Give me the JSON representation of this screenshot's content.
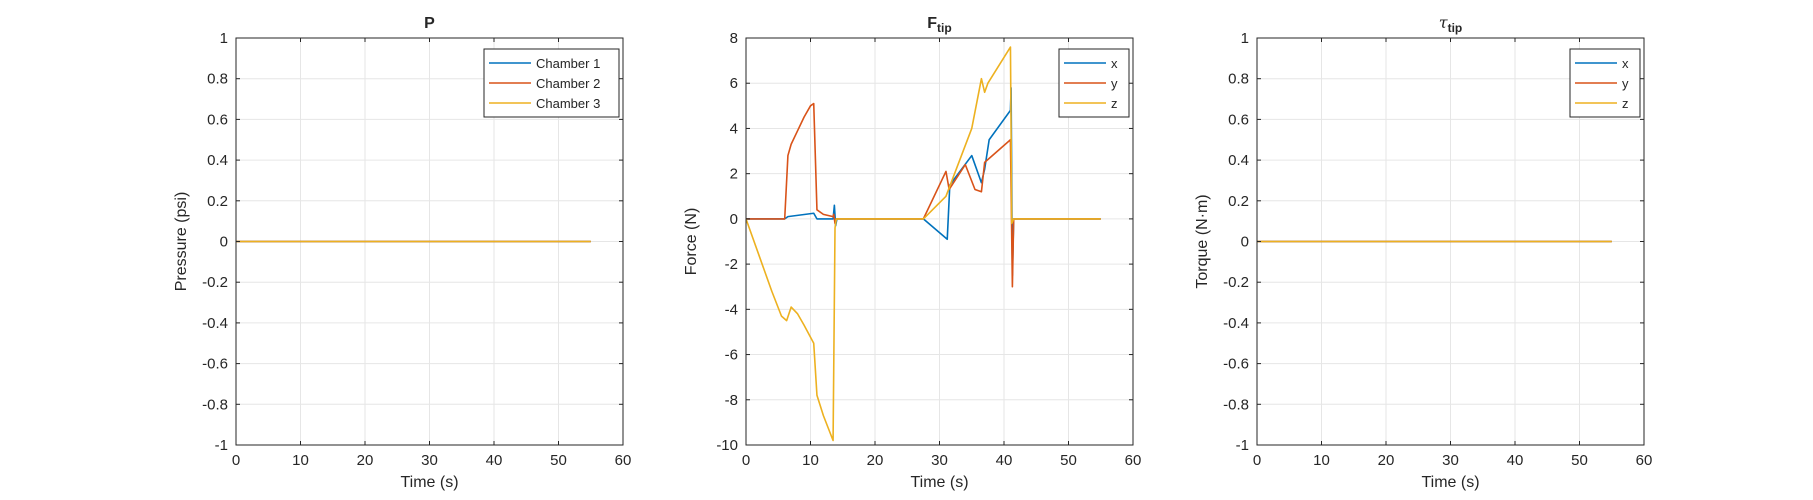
{
  "chart_data": [
    {
      "type": "line",
      "title": "P",
      "title_sub": "",
      "title_symbol": "",
      "xlabel": "Time (s)",
      "ylabel": "Pressure (psi)",
      "xlim": [
        0,
        60
      ],
      "ylim": [
        -1,
        1
      ],
      "xticks": [
        0,
        10,
        20,
        30,
        40,
        50,
        60
      ],
      "yticks": [
        -1,
        -0.8,
        -0.6,
        -0.4,
        -0.2,
        0,
        0.2,
        0.4,
        0.6,
        0.8,
        1
      ],
      "grid": true,
      "legend_position": "top-right",
      "series": [
        {
          "name": "Chamber 1",
          "color": "#0072BD",
          "x": [
            0,
            55
          ],
          "y": [
            0,
            0
          ]
        },
        {
          "name": "Chamber 2",
          "color": "#D95319",
          "x": [
            0,
            55
          ],
          "y": [
            0,
            0
          ]
        },
        {
          "name": "Chamber 3",
          "color": "#EDB120",
          "x": [
            0,
            55
          ],
          "y": [
            0,
            0
          ]
        }
      ]
    },
    {
      "type": "line",
      "title": "F",
      "title_sub": "tip",
      "title_symbol": "",
      "xlabel": "Time (s)",
      "ylabel": "Force (N)",
      "xlim": [
        0,
        60
      ],
      "ylim": [
        -10,
        8
      ],
      "xticks": [
        0,
        10,
        20,
        30,
        40,
        50,
        60
      ],
      "yticks": [
        -10,
        -8,
        -6,
        -4,
        -2,
        0,
        2,
        4,
        6,
        8
      ],
      "grid": true,
      "legend_position": "top-right",
      "series": [
        {
          "name": "x",
          "color": "#0072BD",
          "x": [
            0,
            6,
            6.5,
            10.5,
            11,
            13.5,
            13.7,
            13.9,
            14.1,
            27.5,
            31.2,
            31.6,
            35,
            36.5,
            37,
            37.7,
            41,
            41.1,
            41.3,
            41.5,
            55
          ],
          "y": [
            0,
            0,
            0.1,
            0.25,
            0,
            0,
            0.6,
            -0.3,
            0,
            0,
            -0.9,
            1.5,
            2.8,
            1.6,
            2.2,
            3.5,
            4.8,
            5.8,
            -2.5,
            0,
            0
          ]
        },
        {
          "name": "y",
          "color": "#D95319",
          "x": [
            0,
            6,
            6.5,
            7,
            8,
            9,
            10,
            10.5,
            11,
            12,
            13.5,
            13.6,
            13.8,
            14,
            27.5,
            31,
            31.5,
            34,
            35.5,
            36.5,
            37,
            41,
            41.3,
            41.5,
            55
          ],
          "y": [
            0,
            0,
            2.8,
            3.3,
            3.9,
            4.5,
            5.0,
            5.1,
            0.4,
            0.2,
            0.1,
            0.2,
            -0.2,
            0,
            0,
            2.1,
            1.3,
            2.4,
            1.3,
            1.2,
            2.5,
            3.5,
            -3.0,
            0,
            0
          ]
        },
        {
          "name": "z",
          "color": "#EDB120",
          "x": [
            0,
            2,
            4,
            5.5,
            6.3,
            7,
            8,
            9,
            10.5,
            11,
            12,
            13.5,
            13.8,
            14,
            27.5,
            31,
            35,
            36.5,
            37,
            37.5,
            41,
            41.2,
            41.5,
            55
          ],
          "y": [
            0,
            -1.6,
            -3.2,
            -4.3,
            -4.5,
            -3.9,
            -4.2,
            -4.7,
            -5.5,
            -7.8,
            -8.7,
            -9.8,
            -0.4,
            0,
            0,
            1.0,
            4.0,
            6.2,
            5.6,
            6.0,
            7.6,
            -0.2,
            0,
            0
          ]
        }
      ]
    },
    {
      "type": "line",
      "title": "",
      "title_sub": "tip",
      "title_symbol": "τ",
      "xlabel": "Time (s)",
      "ylabel": "Torque (N·m)",
      "xlim": [
        0,
        60
      ],
      "ylim": [
        -1,
        1
      ],
      "xticks": [
        0,
        10,
        20,
        30,
        40,
        50,
        60
      ],
      "yticks": [
        -1,
        -0.8,
        -0.6,
        -0.4,
        -0.2,
        0,
        0.2,
        0.4,
        0.6,
        0.8,
        1
      ],
      "grid": true,
      "legend_position": "top-right",
      "series": [
        {
          "name": "x",
          "color": "#0072BD",
          "x": [
            0,
            55
          ],
          "y": [
            0,
            0
          ]
        },
        {
          "name": "y",
          "color": "#D95319",
          "x": [
            0,
            55
          ],
          "y": [
            0,
            0
          ]
        },
        {
          "name": "z",
          "color": "#EDB120",
          "x": [
            0,
            55
          ],
          "y": [
            0,
            0
          ]
        }
      ]
    }
  ]
}
